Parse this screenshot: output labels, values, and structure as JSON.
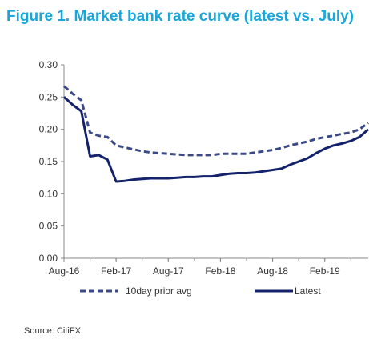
{
  "figure": {
    "title": "Figure 1. Market bank rate curve (latest vs. July)",
    "source": "Source: CitiFX"
  },
  "colors": {
    "title": "#1aa6d8",
    "prior_series": "#3b4a86",
    "latest_series": "#13226b",
    "axis": "#888888"
  },
  "chart_data": {
    "type": "line",
    "title": "Figure 1. Market bank rate curve (latest vs. July)",
    "xlabel": "",
    "ylabel": "",
    "x_ticks": [
      "Aug-16",
      "Feb-17",
      "Aug-17",
      "Feb-18",
      "Aug-18",
      "Feb-19"
    ],
    "ylim": [
      0,
      0.3
    ],
    "y_ticks": [
      "0.00",
      "0.05",
      "0.10",
      "0.15",
      "0.20",
      "0.25",
      "0.30"
    ],
    "grid": false,
    "legend": "bottom",
    "x": [
      "Aug-16",
      "Sep-16",
      "Oct-16",
      "Nov-16",
      "Dec-16",
      "Jan-17",
      "Feb-17",
      "Mar-17",
      "Apr-17",
      "May-17",
      "Jun-17",
      "Jul-17",
      "Aug-17",
      "Sep-17",
      "Oct-17",
      "Nov-17",
      "Dec-17",
      "Jan-18",
      "Feb-18",
      "Mar-18",
      "Apr-18",
      "May-18",
      "Jun-18",
      "Jul-18",
      "Aug-18",
      "Sep-18",
      "Oct-18",
      "Nov-18",
      "Dec-18",
      "Jan-19",
      "Feb-19",
      "Mar-19",
      "Apr-19",
      "May-19",
      "Jun-19",
      "Jul-19"
    ],
    "series": [
      {
        "name": "10day prior avg",
        "style": "dashed",
        "values": [
          0.267,
          0.255,
          0.245,
          0.195,
          0.19,
          0.188,
          0.175,
          0.172,
          0.169,
          0.166,
          0.164,
          0.163,
          0.162,
          0.161,
          0.16,
          0.16,
          0.16,
          0.16,
          0.162,
          0.162,
          0.162,
          0.162,
          0.164,
          0.166,
          0.168,
          0.171,
          0.175,
          0.178,
          0.181,
          0.185,
          0.188,
          0.19,
          0.193,
          0.195,
          0.2,
          0.21
        ]
      },
      {
        "name": "Latest",
        "style": "solid",
        "values": [
          0.25,
          0.238,
          0.228,
          0.158,
          0.16,
          0.153,
          0.119,
          0.12,
          0.122,
          0.123,
          0.124,
          0.124,
          0.124,
          0.125,
          0.126,
          0.126,
          0.127,
          0.127,
          0.129,
          0.131,
          0.132,
          0.132,
          0.133,
          0.135,
          0.137,
          0.139,
          0.145,
          0.15,
          0.155,
          0.163,
          0.17,
          0.175,
          0.178,
          0.182,
          0.188,
          0.2
        ]
      }
    ]
  }
}
